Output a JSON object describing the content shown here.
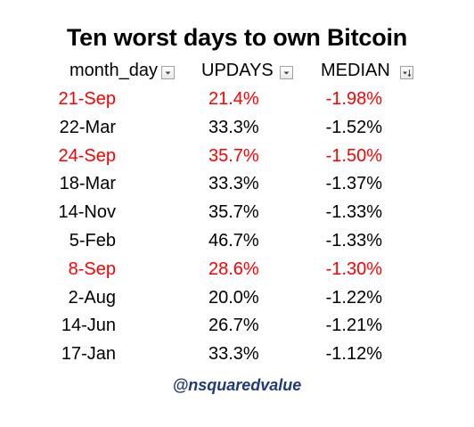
{
  "title": "Ten worst days to own Bitcoin",
  "headers": {
    "month_day": "month_day",
    "updays": "UPDAYS",
    "median": "MEDIAN"
  },
  "highlight_color": "#ff0000",
  "footer_color": "#1f3a7a",
  "rows": [
    {
      "month_day": "21-Sep",
      "updays": "21.4%",
      "median": "-1.98%",
      "highlight": true
    },
    {
      "month_day": "22-Mar",
      "updays": "33.3%",
      "median": "-1.52%",
      "highlight": false
    },
    {
      "month_day": "24-Sep",
      "updays": "35.7%",
      "median": "-1.50%",
      "highlight": true
    },
    {
      "month_day": "18-Mar",
      "updays": "33.3%",
      "median": "-1.37%",
      "highlight": false
    },
    {
      "month_day": "14-Nov",
      "updays": "35.7%",
      "median": "-1.33%",
      "highlight": false
    },
    {
      "month_day": "5-Feb",
      "updays": "46.7%",
      "median": "-1.33%",
      "highlight": false
    },
    {
      "month_day": "8-Sep",
      "updays": "28.6%",
      "median": "-1.30%",
      "highlight": true
    },
    {
      "month_day": "2-Aug",
      "updays": "20.0%",
      "median": "-1.22%",
      "highlight": false
    },
    {
      "month_day": "14-Jun",
      "updays": "26.7%",
      "median": "-1.21%",
      "highlight": false
    },
    {
      "month_day": "17-Jan",
      "updays": "33.3%",
      "median": "-1.12%",
      "highlight": false
    }
  ],
  "footer": "@nsquaredvalue",
  "icons": {
    "month_day_filter": "filter-dropdown-icon",
    "updays_filter": "filter-dropdown-icon",
    "median_filter": "sort-descending-filter-icon"
  }
}
